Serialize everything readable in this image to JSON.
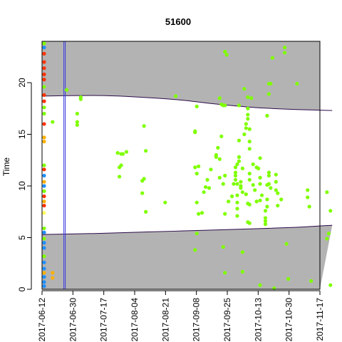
{
  "chart_data": {
    "type": "scatter",
    "title": "51600",
    "xlabel": "",
    "ylabel": "Time",
    "x_tick_labels": [
      "2017-06-12",
      "2017-06-30",
      "2017-07-17",
      "2017-08-04",
      "2017-08-21",
      "2017-09-08",
      "2017-09-25",
      "2017-10-13",
      "2017-10-30",
      "2017-11-17"
    ],
    "y_ticks": [
      0,
      5,
      10,
      15,
      20
    ],
    "xlim": [
      "2017-06-12",
      "2017-11-17"
    ],
    "ylim": [
      0,
      24
    ],
    "grid": false,
    "colors": {
      "shade": "#b3b3b3",
      "boundary": "#2c0a4a",
      "vline": "#3b3bdc",
      "green": "#7fff00",
      "yellow": "#ffff55",
      "red": "#ff3300",
      "orange": "#ffb000",
      "blue": "#1e90ff"
    },
    "upper_boundary": [
      [
        0,
        18.7
      ],
      [
        20,
        18.75
      ],
      [
        35,
        18.75
      ],
      [
        50,
        18.65
      ],
      [
        65,
        18.5
      ],
      [
        80,
        18.3
      ],
      [
        95,
        18.0
      ],
      [
        110,
        17.75
      ],
      [
        125,
        17.55
      ],
      [
        145,
        17.4
      ],
      [
        165,
        17.3
      ]
    ],
    "lower_boundary": [
      [
        0,
        5.3
      ],
      [
        30,
        5.4
      ],
      [
        60,
        5.55
      ],
      [
        90,
        5.7
      ],
      [
        120,
        5.85
      ],
      [
        145,
        6.0
      ],
      [
        165,
        6.2
      ]
    ],
    "vlines_days": [
      12.4,
      13.2
    ],
    "edge_points": [
      {
        "x": 0,
        "y": 23.8,
        "color": "#7fff00"
      },
      {
        "x": 0,
        "y": 23.4,
        "color": "#1e90ff"
      },
      {
        "x": 0,
        "y": 22.8,
        "color": "#ff3300"
      },
      {
        "x": 0,
        "y": 22.0,
        "color": "#ff3300"
      },
      {
        "x": 0,
        "y": 21.4,
        "color": "#ff3300"
      },
      {
        "x": 0,
        "y": 20.8,
        "color": "#ff3300"
      },
      {
        "x": 0,
        "y": 20.3,
        "color": "#ff3300"
      },
      {
        "x": 0,
        "y": 19.6,
        "color": "#7fff00"
      },
      {
        "x": 0,
        "y": 18.8,
        "color": "#ff3300"
      },
      {
        "x": 0,
        "y": 18.2,
        "color": "#ff3300"
      },
      {
        "x": 0,
        "y": 17.6,
        "color": "#7fff00"
      },
      {
        "x": 0,
        "y": 17.0,
        "color": "#7fff00"
      },
      {
        "x": 0,
        "y": 16.0,
        "color": "#ff3300"
      },
      {
        "x": 0,
        "y": 14.7,
        "color": "#ffb000"
      },
      {
        "x": 0,
        "y": 14.3,
        "color": "#ffb000"
      },
      {
        "x": 0,
        "y": 12.0,
        "color": "#7fff00"
      },
      {
        "x": 0,
        "y": 11.6,
        "color": "#ff3300"
      },
      {
        "x": 0,
        "y": 11.0,
        "color": "#1e90ff"
      },
      {
        "x": 0,
        "y": 10.4,
        "color": "#ffb000"
      },
      {
        "x": 0,
        "y": 10.0,
        "color": "#1e90ff"
      },
      {
        "x": 0,
        "y": 9.5,
        "color": "#7fff00"
      },
      {
        "x": 0,
        "y": 9.0,
        "color": "#ff3300"
      },
      {
        "x": 0,
        "y": 8.5,
        "color": "#ffb000"
      },
      {
        "x": 0,
        "y": 8.1,
        "color": "#ff3300"
      },
      {
        "x": 0,
        "y": 7.4,
        "color": "#ffff55"
      },
      {
        "x": 0,
        "y": 5.9,
        "color": "#7fff00"
      },
      {
        "x": 0,
        "y": 5.5,
        "color": "#1e90ff"
      },
      {
        "x": 0,
        "y": 4.9,
        "color": "#7fff00"
      },
      {
        "x": 0,
        "y": 4.5,
        "color": "#1e90ff"
      },
      {
        "x": 0,
        "y": 4.0,
        "color": "#1e90ff"
      },
      {
        "x": 0,
        "y": 3.2,
        "color": "#7fff00"
      },
      {
        "x": 0,
        "y": 2.6,
        "color": "#1e90ff"
      },
      {
        "x": 0,
        "y": 2.0,
        "color": "#1e90ff"
      },
      {
        "x": 0,
        "y": 1.6,
        "color": "#ffb000"
      },
      {
        "x": 0,
        "y": 1.2,
        "color": "#1e90ff"
      },
      {
        "x": 0,
        "y": 0.7,
        "color": "#1e90ff"
      },
      {
        "x": 0,
        "y": 0.3,
        "color": "#1e90ff"
      },
      {
        "x": 6,
        "y": 1.6,
        "color": "#ffb000"
      },
      {
        "x": 6,
        "y": 1.1,
        "color": "#ffb000"
      },
      {
        "x": 6,
        "y": 16.2,
        "color": "#7fff00"
      }
    ],
    "points": [
      {
        "x": 22,
        "y": 18.6
      },
      {
        "x": 22,
        "y": 18.4
      },
      {
        "x": 20,
        "y": 17.0
      },
      {
        "x": 20,
        "y": 16.2
      },
      {
        "x": 20,
        "y": 15.9
      },
      {
        "x": 14,
        "y": 19.3
      },
      {
        "x": 43,
        "y": 13.2
      },
      {
        "x": 45,
        "y": 13.1
      },
      {
        "x": 46,
        "y": 13.1
      },
      {
        "x": 48,
        "y": 13.3
      },
      {
        "x": 44,
        "y": 11.8
      },
      {
        "x": 45,
        "y": 12.0
      },
      {
        "x": 44,
        "y": 10.9
      },
      {
        "x": 57,
        "y": 9.3
      },
      {
        "x": 57,
        "y": 10.5
      },
      {
        "x": 58,
        "y": 10.7
      },
      {
        "x": 59,
        "y": 13.4
      },
      {
        "x": 58,
        "y": 15.8
      },
      {
        "x": 59,
        "y": 7.5
      },
      {
        "x": 70,
        "y": 8.4
      },
      {
        "x": 76,
        "y": 18.7
      },
      {
        "x": 87,
        "y": 15.2
      },
      {
        "x": 87,
        "y": 15.3
      },
      {
        "x": 88,
        "y": 17.7
      },
      {
        "x": 87,
        "y": 11.8
      },
      {
        "x": 88,
        "y": 11.2
      },
      {
        "x": 89,
        "y": 11.9
      },
      {
        "x": 88,
        "y": 8.4
      },
      {
        "x": 89,
        "y": 7.3
      },
      {
        "x": 91,
        "y": 7.4
      },
      {
        "x": 92,
        "y": 9.4
      },
      {
        "x": 93,
        "y": 9.9
      },
      {
        "x": 94,
        "y": 10.6
      },
      {
        "x": 95,
        "y": 9.8
      },
      {
        "x": 88,
        "y": 5.4
      },
      {
        "x": 87,
        "y": 3.8
      },
      {
        "x": 96,
        "y": 11.6
      },
      {
        "x": 99,
        "y": 12.8
      },
      {
        "x": 99,
        "y": 13.0
      },
      {
        "x": 100,
        "y": 13.7
      },
      {
        "x": 101,
        "y": 12.6
      },
      {
        "x": 102,
        "y": 14.8
      },
      {
        "x": 103,
        "y": 10.2
      },
      {
        "x": 101,
        "y": 10.8
      },
      {
        "x": 102,
        "y": 17.9
      },
      {
        "x": 103,
        "y": 17.8
      },
      {
        "x": 104,
        "y": 17.8
      },
      {
        "x": 101,
        "y": 18.5
      },
      {
        "x": 104,
        "y": 23.0
      },
      {
        "x": 105,
        "y": 22.7
      },
      {
        "x": 104,
        "y": 11.0
      },
      {
        "x": 106,
        "y": 8.5
      },
      {
        "x": 104,
        "y": 7.3
      },
      {
        "x": 103,
        "y": 4.1
      },
      {
        "x": 104,
        "y": 1.6
      },
      {
        "x": 108,
        "y": 9.0
      },
      {
        "x": 109,
        "y": 10.2
      },
      {
        "x": 110,
        "y": 10.6
      },
      {
        "x": 110,
        "y": 11.3
      },
      {
        "x": 110,
        "y": 11.8
      },
      {
        "x": 111,
        "y": 12.1
      },
      {
        "x": 110,
        "y": 11.0
      },
      {
        "x": 111,
        "y": 10.2
      },
      {
        "x": 111,
        "y": 9.1
      },
      {
        "x": 111,
        "y": 8.4
      },
      {
        "x": 111,
        "y": 7.8
      },
      {
        "x": 111,
        "y": 7.1
      },
      {
        "x": 112,
        "y": 12.4
      },
      {
        "x": 112,
        "y": 12.8
      },
      {
        "x": 113,
        "y": 10.4
      },
      {
        "x": 113,
        "y": 9.8
      },
      {
        "x": 113,
        "y": 10.0
      },
      {
        "x": 114,
        "y": 11.7
      },
      {
        "x": 114,
        "y": 9.4
      },
      {
        "x": 114,
        "y": 3.6
      },
      {
        "x": 114,
        "y": 1.7
      },
      {
        "x": 112,
        "y": 14.4
      },
      {
        "x": 112,
        "y": 17.8
      },
      {
        "x": 115,
        "y": 19.4
      },
      {
        "x": 115,
        "y": 15.0
      },
      {
        "x": 116,
        "y": 15.6
      },
      {
        "x": 116,
        "y": 16.0
      },
      {
        "x": 117,
        "y": 16.9
      },
      {
        "x": 117,
        "y": 17.5
      },
      {
        "x": 117,
        "y": 18.6
      },
      {
        "x": 117,
        "y": 16.5
      },
      {
        "x": 118,
        "y": 15.5
      },
      {
        "x": 118,
        "y": 14.3
      },
      {
        "x": 118,
        "y": 13.6
      },
      {
        "x": 118,
        "y": 11.2
      },
      {
        "x": 118,
        "y": 10.6
      },
      {
        "x": 118,
        "y": 8.2
      },
      {
        "x": 118,
        "y": 6.4
      },
      {
        "x": 117,
        "y": 6.5
      },
      {
        "x": 117,
        "y": 8.3
      },
      {
        "x": 116,
        "y": 9.2
      },
      {
        "x": 119,
        "y": 18.5
      },
      {
        "x": 120,
        "y": 12.1
      },
      {
        "x": 120,
        "y": 10.1
      },
      {
        "x": 121,
        "y": 9.6
      },
      {
        "x": 122,
        "y": 11.8
      },
      {
        "x": 123,
        "y": 11.7
      },
      {
        "x": 124,
        "y": 10.2
      },
      {
        "x": 124,
        "y": 10.8
      },
      {
        "x": 124,
        "y": 12.7
      },
      {
        "x": 122,
        "y": 8.5
      },
      {
        "x": 124,
        "y": 8.6
      },
      {
        "x": 125,
        "y": 9.1
      },
      {
        "x": 127,
        "y": 6.3
      },
      {
        "x": 127,
        "y": 6.6
      },
      {
        "x": 127,
        "y": 6.9
      },
      {
        "x": 127,
        "y": 7.6
      },
      {
        "x": 128,
        "y": 8.0
      },
      {
        "x": 128,
        "y": 8.7
      },
      {
        "x": 128,
        "y": 10.1
      },
      {
        "x": 129,
        "y": 11.0
      },
      {
        "x": 129,
        "y": 11.3
      },
      {
        "x": 129,
        "y": 10.2
      },
      {
        "x": 130,
        "y": 9.8
      },
      {
        "x": 128,
        "y": 16.8
      },
      {
        "x": 129,
        "y": 18.9
      },
      {
        "x": 129,
        "y": 19.9
      },
      {
        "x": 130,
        "y": 19.9
      },
      {
        "x": 131,
        "y": 22.4
      },
      {
        "x": 124,
        "y": 0.4
      },
      {
        "x": 133,
        "y": 10.4
      },
      {
        "x": 133,
        "y": 9.6
      },
      {
        "x": 133,
        "y": 11.1
      },
      {
        "x": 134,
        "y": 9.3
      },
      {
        "x": 134,
        "y": 8.1
      },
      {
        "x": 136,
        "y": 8.7
      },
      {
        "x": 138,
        "y": 23.4
      },
      {
        "x": 138,
        "y": 22.9
      },
      {
        "x": 139,
        "y": 4.4
      },
      {
        "x": 140,
        "y": 1.0
      },
      {
        "x": 132,
        "y": 0.1
      },
      {
        "x": 145,
        "y": 19.9
      },
      {
        "x": 151,
        "y": 9.6
      },
      {
        "x": 151,
        "y": 8.9
      },
      {
        "x": 152,
        "y": 8.0
      },
      {
        "x": 153,
        "y": 0.8
      },
      {
        "x": 162,
        "y": 9.4
      },
      {
        "x": 162,
        "y": 4.9
      },
      {
        "x": 163,
        "y": 5.4
      },
      {
        "x": 164,
        "y": 7.6
      },
      {
        "x": 164,
        "y": 0.4
      }
    ]
  }
}
